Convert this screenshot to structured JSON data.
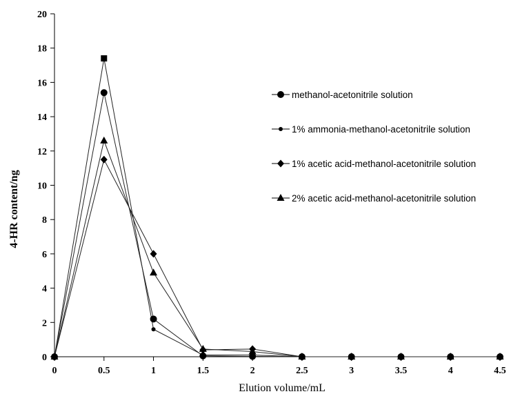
{
  "chart_data": {
    "type": "line",
    "xlabel": "Elution volume/mL",
    "ylabel": "4-HR content/ng",
    "xlim": [
      0,
      4.5
    ],
    "ylim": [
      0,
      20
    ],
    "x_ticks": [
      "0",
      "0.5",
      "1",
      "1.5",
      "2",
      "2.5",
      "3",
      "3.5",
      "4",
      "4.5"
    ],
    "y_ticks": [
      "0",
      "2",
      "4",
      "6",
      "8",
      "10",
      "12",
      "14",
      "16",
      "18",
      "20"
    ],
    "grid": false,
    "legend_position": "right",
    "x": [
      0,
      0.5,
      1,
      1.5,
      2,
      2.5,
      3,
      3.5,
      4,
      4.5
    ],
    "series": [
      {
        "name": "methanol-acetonitrile solution",
        "marker": "circle",
        "values": [
          0,
          15.4,
          2.2,
          0.05,
          0.02,
          0,
          0,
          0,
          0,
          0
        ]
      },
      {
        "name": "1% ammonia-methanol-acetonitrile solution",
        "marker": "small-circle",
        "values": [
          0,
          17.4,
          1.6,
          0.1,
          0.1,
          0,
          0,
          0,
          0,
          0
        ]
      },
      {
        "name": "1% acetic acid-methanol-acetonitrile solution",
        "marker": "diamond",
        "values": [
          0,
          11.5,
          6.0,
          0.4,
          0.45,
          0,
          0,
          0,
          0,
          0
        ]
      },
      {
        "name": "2% acetic acid-methanol-acetonitrile solution",
        "marker": "triangle",
        "values": [
          0,
          12.6,
          4.9,
          0.45,
          0.3,
          0,
          0,
          0,
          0,
          0
        ]
      }
    ],
    "extra_markers": [
      {
        "marker": "square",
        "x": 0.5,
        "y": 17.4
      }
    ]
  }
}
